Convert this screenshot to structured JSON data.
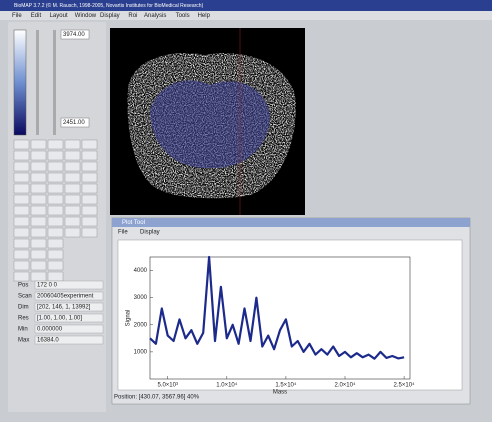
{
  "window": {
    "title": "BioMAP 3.7.2 (© M. Rausch, 1998-2005, Novartis Institutes for BioMedical Research)"
  },
  "menu": [
    "File",
    "Edit",
    "Layout",
    "Window",
    "Display",
    "Roi",
    "Analysis",
    "Tools",
    "Help"
  ],
  "controls": {
    "max_field": "3974.00",
    "min_field": "2451.00"
  },
  "info": [
    {
      "label": "Pos",
      "value": "172  0  0"
    },
    {
      "label": "Scan",
      "value": "20060405experiment"
    },
    {
      "label": "Dim",
      "value": "[202, 146, 1, 13992]"
    },
    {
      "label": "Res",
      "value": "[1.00, 1.00, 1.00]"
    },
    {
      "label": "Min",
      "value": "0.000000"
    },
    {
      "label": "Max",
      "value": "16384.0"
    }
  ],
  "plot_window": {
    "title": "Plot Tool",
    "menu": [
      "File",
      "Display"
    ],
    "status": "Position: [430.07, 3567.96] 40%"
  },
  "plot": {
    "xlabel": "Mass",
    "ylabel": "Signal",
    "color": "#1c2a8c",
    "xlim": [
      3500,
      25500
    ],
    "ylim": [
      0,
      4500
    ],
    "xticks": [
      {
        "value": 5000,
        "label": "5.0×10³"
      },
      {
        "value": 10000,
        "label": "1.0×10⁴"
      },
      {
        "value": 15000,
        "label": "1.5×10⁴"
      },
      {
        "value": 20000,
        "label": "2.0×10⁴"
      },
      {
        "value": 25000,
        "label": "2.5×10⁴"
      }
    ],
    "yticks": [
      1000,
      2000,
      3000,
      4000
    ],
    "x": [
      3500,
      4000,
      4500,
      5000,
      5500,
      6000,
      6500,
      7000,
      7500,
      8000,
      8500,
      9000,
      9500,
      10000,
      10500,
      11000,
      11500,
      12000,
      12500,
      13000,
      13500,
      14000,
      14500,
      15000,
      15500,
      16000,
      16500,
      17000,
      17500,
      18000,
      18500,
      19000,
      19500,
      20000,
      20500,
      21000,
      21500,
      22000,
      22500,
      23000,
      23500,
      24000,
      24500,
      25000
    ],
    "values": [
      1500,
      1300,
      2600,
      1600,
      1400,
      2200,
      1500,
      1800,
      1300,
      1700,
      4500,
      1400,
      3400,
      1500,
      2000,
      1300,
      2600,
      1400,
      3000,
      1200,
      1600,
      1100,
      1800,
      2200,
      1200,
      1400,
      1000,
      1300,
      900,
      1100,
      900,
      1200,
      850,
      1000,
      800,
      950,
      800,
      900,
      750,
      1000,
      780,
      850,
      760,
      800
    ]
  }
}
